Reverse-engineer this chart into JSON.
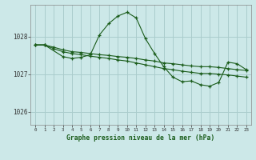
{
  "title": "Graphe pression niveau de la mer (hPa)",
  "bg_color": "#cce8e8",
  "grid_color": "#aacccc",
  "line_color": "#1a5c1a",
  "marker_color": "#1a5c1a",
  "xlim": [
    -0.5,
    23.5
  ],
  "ylim": [
    1025.65,
    1028.85
  ],
  "yticks": [
    1026,
    1027,
    1028
  ],
  "xticks": [
    0,
    1,
    2,
    3,
    4,
    5,
    6,
    7,
    8,
    9,
    10,
    11,
    12,
    13,
    14,
    15,
    16,
    17,
    18,
    19,
    20,
    21,
    22,
    23
  ],
  "series": [
    {
      "x": [
        0,
        1,
        2,
        3,
        4,
        5,
        6,
        7,
        8,
        9,
        10,
        11,
        12,
        13,
        14,
        15,
        16,
        17,
        18,
        19,
        20,
        21,
        22,
        23
      ],
      "y": [
        1027.78,
        1027.78,
        1027.72,
        1027.65,
        1027.6,
        1027.58,
        1027.55,
        1027.52,
        1027.5,
        1027.47,
        1027.45,
        1027.42,
        1027.38,
        1027.35,
        1027.3,
        1027.28,
        1027.25,
        1027.22,
        1027.2,
        1027.2,
        1027.18,
        1027.15,
        1027.12,
        1027.1
      ]
    },
    {
      "x": [
        0,
        1,
        2,
        3,
        4,
        5,
        6,
        7,
        8,
        9,
        10,
        11,
        12,
        13,
        14,
        15,
        16,
        17,
        18,
        19,
        20,
        21,
        22,
        23
      ],
      "y": [
        1027.78,
        1027.78,
        1027.68,
        1027.6,
        1027.55,
        1027.52,
        1027.48,
        1027.45,
        1027.42,
        1027.38,
        1027.35,
        1027.3,
        1027.25,
        1027.2,
        1027.15,
        1027.12,
        1027.08,
        1027.05,
        1027.02,
        1027.02,
        1027.0,
        1026.98,
        1026.95,
        1026.92
      ]
    },
    {
      "x": [
        0,
        1,
        3,
        4,
        5,
        6,
        7,
        8,
        9,
        10,
        11,
        12,
        13,
        14,
        15,
        16,
        17,
        18,
        19,
        20,
        21,
        22,
        23
      ],
      "y": [
        1027.78,
        1027.78,
        1027.47,
        1027.42,
        1027.45,
        1027.52,
        1028.05,
        1028.35,
        1028.55,
        1028.65,
        1028.5,
        1027.95,
        1027.55,
        1027.2,
        1026.92,
        1026.8,
        1026.82,
        1026.72,
        1026.68,
        1026.78,
        1027.32,
        1027.28,
        1027.12
      ]
    }
  ]
}
